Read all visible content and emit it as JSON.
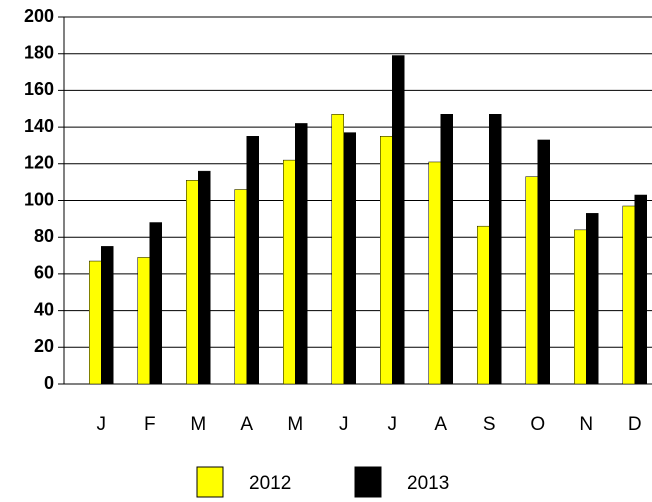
{
  "chart_data": {
    "type": "bar",
    "categories": [
      "J",
      "F",
      "M",
      "A",
      "M",
      "J",
      "J",
      "A",
      "S",
      "O",
      "N",
      "D"
    ],
    "series": [
      {
        "name": "2012",
        "color": "#ffff00",
        "values": [
          67,
          69,
          111,
          106,
          122,
          147,
          135,
          121,
          86,
          113,
          84,
          97
        ]
      },
      {
        "name": "2013",
        "color": "#000000",
        "values": [
          75,
          88,
          116,
          135,
          142,
          137,
          179,
          147,
          147,
          133,
          93,
          103
        ]
      }
    ],
    "ylim": [
      0,
      200
    ],
    "yticks": [
      0,
      20,
      40,
      60,
      80,
      100,
      120,
      140,
      160,
      180,
      200
    ],
    "grid": true
  }
}
